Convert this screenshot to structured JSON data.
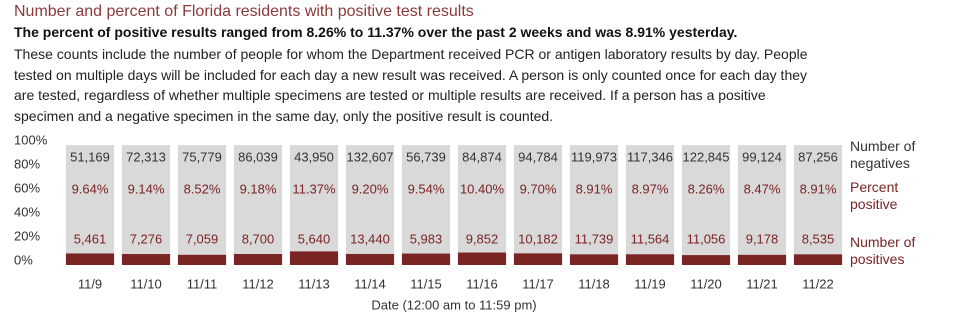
{
  "title": "Number and percent of Florida residents with positive test results",
  "subtitle": "The percent of positive results ranged from 8.26% to 11.37% over the past 2 weeks and was 8.91% yesterday.",
  "description": "These counts include the number of people for whom the Department received PCR or antigen laboratory results by day. People tested on multiple days will be included for each day a new result was received. A person is only counted once for each day they are tested, regardless of whether multiple specimens are tested or multiple results are received. If a person has a positive specimen and a negative specimen in the same day, only the positive result is counted.",
  "chart_data": {
    "type": "stacked_bar_100",
    "x_label": "Date (12:00 am to 11:59 pm)",
    "categories": [
      "11/9",
      "11/10",
      "11/11",
      "11/12",
      "11/13",
      "11/14",
      "11/15",
      "11/16",
      "11/17",
      "11/18",
      "11/19",
      "11/20",
      "11/21",
      "11/22"
    ],
    "series": [
      {
        "name": "Number of positives",
        "color": "#7a2424",
        "values": [
          5461,
          7276,
          7059,
          8700,
          5640,
          13440,
          5983,
          9852,
          10182,
          11739,
          11564,
          11056,
          9178,
          8535
        ],
        "value_labels": [
          "5,461",
          "7,276",
          "7,059",
          "8,700",
          "5,640",
          "13,440",
          "5,983",
          "9,852",
          "10,182",
          "11,739",
          "11,564",
          "11,056",
          "9,178",
          "8,535"
        ]
      },
      {
        "name": "Percent positive",
        "color": "#7a2424",
        "values": [
          9.64,
          9.14,
          8.52,
          9.18,
          11.37,
          9.2,
          9.54,
          10.4,
          9.7,
          8.91,
          8.97,
          8.26,
          8.47,
          8.91
        ],
        "value_labels": [
          "9.64%",
          "9.14%",
          "8.52%",
          "9.18%",
          "11.37%",
          "9.20%",
          "9.54%",
          "10.40%",
          "9.70%",
          "8.91%",
          "8.97%",
          "8.26%",
          "8.47%",
          "8.91%"
        ]
      },
      {
        "name": "Number of negatives",
        "color": "#d9d9d9",
        "values": [
          51169,
          72313,
          75779,
          86039,
          43950,
          132607,
          56739,
          84874,
          94784,
          119973,
          117346,
          122845,
          99124,
          87256
        ],
        "value_labels": [
          "51,169",
          "72,313",
          "75,779",
          "86,039",
          "43,950",
          "132,607",
          "56,739",
          "84,874",
          "94,784",
          "119,973",
          "117,346",
          "122,845",
          "99,124",
          "87,256"
        ]
      }
    ],
    "ylim": [
      0,
      100
    ],
    "yticks": [
      {
        "value": 0,
        "label": "0%"
      },
      {
        "value": 20,
        "label": "20%"
      },
      {
        "value": 40,
        "label": "40%"
      },
      {
        "value": 60,
        "label": "60%"
      },
      {
        "value": 80,
        "label": "80%"
      },
      {
        "value": 100,
        "label": "100%"
      }
    ]
  }
}
